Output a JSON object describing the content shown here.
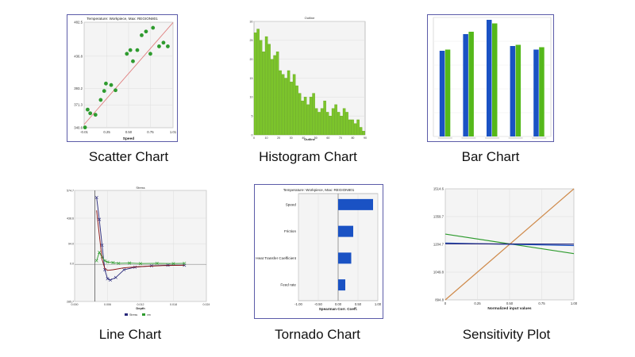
{
  "captions": {
    "scatter": "Scatter Chart",
    "histogram": "Histogram Chart",
    "bar": "Bar Chart",
    "line": "Line Chart",
    "tornado": "Tornado Chart",
    "sensitivity": "Sensitivity Plot"
  },
  "colors": {
    "frame": "#5b5ba8",
    "green": "#2e9b2e",
    "bright_green": "#55b81a",
    "blue": "#1a52c4",
    "navy": "#27277a",
    "dark_red": "#8b1010",
    "orange": "#cf8a4a",
    "grid": "#dedede",
    "plot_bg": "#f4f4f4"
  },
  "chart_data": [
    {
      "id": "scatter",
      "type": "scatter",
      "title": "Temperature: Workpiece, Max: REGION801",
      "xlabel": "Speed",
      "ylabel": "",
      "xlim": [
        -0.01,
        1.01
      ],
      "ylim": [
        340.6,
        482.5
      ],
      "xticks": [
        "-0.01",
        "0.25",
        "0.50",
        "0.75",
        "1.01"
      ],
      "yticks": [
        "340.6",
        "371.3",
        "393.2",
        "436.8",
        "482.5"
      ],
      "x": [
        0.0,
        0.03,
        0.06,
        0.12,
        0.18,
        0.22,
        0.24,
        0.3,
        0.35,
        0.48,
        0.52,
        0.55,
        0.6,
        0.65,
        0.7,
        0.75,
        0.78,
        0.85,
        0.9,
        0.95
      ],
      "y": [
        341,
        365,
        360,
        358,
        378,
        390,
        400,
        398,
        391,
        440,
        445,
        430,
        445,
        465,
        470,
        440,
        475,
        450,
        455,
        450
      ],
      "fit_line": [
        [
          -0.01,
          345
        ],
        [
          1.01,
          482
        ]
      ]
    },
    {
      "id": "histogram",
      "type": "bar",
      "title": "Outline",
      "xlabel": "Outline",
      "ylabel": "",
      "ylim": [
        0,
        30
      ],
      "yticks": [
        "0",
        "5",
        "10",
        "15",
        "20",
        "25",
        "30"
      ],
      "xticks": [
        "0",
        "10",
        "20",
        "30",
        "40",
        "50",
        "60",
        "70",
        "80",
        "90"
      ],
      "values": [
        27,
        28,
        25,
        22,
        26,
        24,
        20,
        21,
        22,
        17,
        16,
        15,
        17,
        14,
        16,
        13,
        11,
        9,
        10,
        8,
        10,
        11,
        7,
        6,
        7,
        9,
        6,
        5,
        7,
        8,
        6,
        5,
        7,
        6,
        4,
        4,
        3,
        4,
        2,
        1
      ]
    },
    {
      "id": "bar",
      "type": "bar",
      "title": "",
      "xlabel": "",
      "ylabel": "",
      "ylim": [
        0,
        1
      ],
      "categories": [
        "",
        "",
        "",
        "",
        ""
      ],
      "series": [
        {
          "color": "blue",
          "values": [
            0.72,
            0.86,
            0.98,
            0.76,
            0.73
          ]
        },
        {
          "color": "bright_green",
          "values": [
            0.73,
            0.88,
            0.95,
            0.77,
            0.75
          ]
        }
      ]
    },
    {
      "id": "line",
      "type": "line",
      "title": "Stress",
      "xlabel": "Depth",
      "ylabel": "",
      "xlim": [
        0.0,
        0.024
      ],
      "ylim": [
        -285.7,
        574.7
      ],
      "xticks": [
        "0.000",
        "0.006",
        "0.012",
        "0.018",
        "0.024"
      ],
      "yticks": [
        "-285.7",
        "0.0",
        "94.0",
        "438.6",
        "574.7"
      ],
      "legend": [
        "Stress",
        "vm"
      ],
      "series": [
        {
          "name": "Stress",
          "color": "navy",
          "marker": "x",
          "x": [
            0.004,
            0.0045,
            0.005,
            0.0055,
            0.006,
            0.0065,
            0.0075,
            0.009,
            0.011,
            0.014,
            0.017,
            0.02
          ],
          "y": [
            520,
            350,
            150,
            -40,
            -110,
            -120,
            -100,
            -40,
            -20,
            -10,
            -5,
            -5
          ]
        },
        {
          "name": "vm",
          "color": "green",
          "marker": "x",
          "x": [
            0.004,
            0.0045,
            0.005,
            0.0055,
            0.006,
            0.007,
            0.008,
            0.01,
            0.012,
            0.015,
            0.018,
            0.02
          ],
          "y": [
            30,
            95,
            60,
            30,
            20,
            15,
            10,
            12,
            8,
            10,
            8,
            10
          ]
        },
        {
          "name": "",
          "color": "dark_red",
          "marker": "",
          "x": [
            0.004,
            0.0045,
            0.005,
            0.0055,
            0.006,
            0.007,
            0.009,
            0.012,
            0.016,
            0.02
          ],
          "y": [
            420,
            230,
            40,
            -30,
            -45,
            -40,
            -25,
            -15,
            -8,
            -5
          ]
        }
      ]
    },
    {
      "id": "tornado",
      "type": "bar",
      "orientation": "horizontal",
      "title": "Temperature: Workpiece, Max: REGION801",
      "xlabel": "Spearman Corr. Coeff.",
      "ylabel": "",
      "xlim": [
        -1.0,
        1.0
      ],
      "xticks": [
        "-1.00",
        "-0.50",
        "0.00",
        "0.50",
        "1.00"
      ],
      "categories": [
        "Speed",
        "Friction",
        "Heat Transfer Coefficient",
        "Feed rate"
      ],
      "values": [
        0.88,
        0.38,
        0.33,
        0.18
      ]
    },
    {
      "id": "sensitivity",
      "type": "line",
      "title": "",
      "xlabel": "Normalized input values",
      "ylabel": "",
      "xlim": [
        0,
        1
      ],
      "ylim": [
        894.8,
        1514.6
      ],
      "xticks": [
        "0",
        "0.25",
        "0.50",
        "0.75",
        "1.00"
      ],
      "yticks": [
        "894.8",
        "1049.8",
        "1204.7",
        "1359.7",
        "1514.6"
      ],
      "series": [
        {
          "color": "orange",
          "x": [
            0,
            1
          ],
          "y": [
            894.8,
            1514.6
          ]
        },
        {
          "color": "green",
          "x": [
            0,
            1
          ],
          "y": [
            1262,
            1153
          ]
        },
        {
          "color": "blue",
          "x": [
            0,
            1
          ],
          "y": [
            1212,
            1198
          ]
        },
        {
          "color": "navy",
          "x": [
            0,
            1
          ],
          "y": [
            1208,
            1206
          ]
        }
      ]
    }
  ]
}
